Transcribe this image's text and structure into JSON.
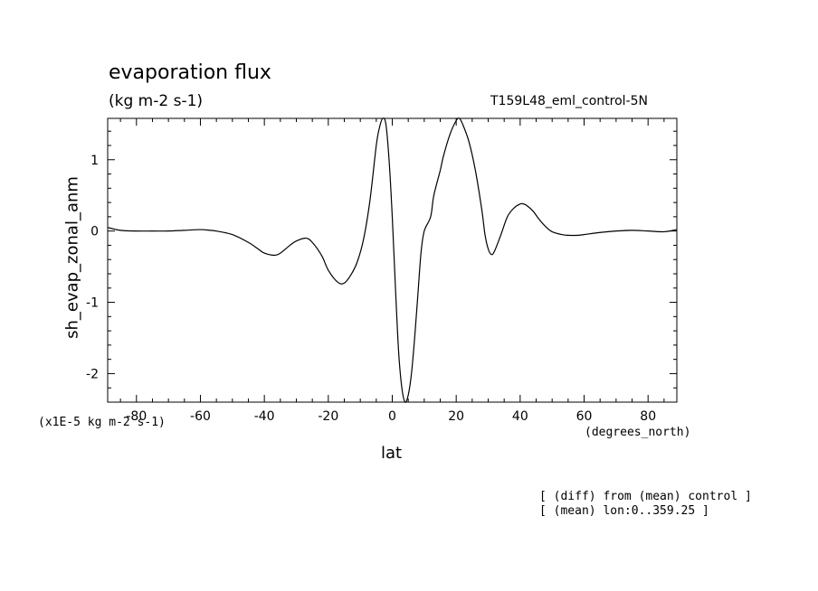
{
  "chart_data": {
    "type": "line",
    "title": "evaporation flux",
    "units": "(kg m-2 s-1)",
    "run_label": "T159L48_eml_control-5N",
    "xlabel": "lat",
    "ylabel": "sh_evap_zonal_anm",
    "x_units": "(degrees_north)",
    "y_scale_note": "(x1E-5 kg m-2 s-1)",
    "xlim": [
      -89,
      89
    ],
    "ylim": [
      -2.4,
      1.58
    ],
    "x_ticks": [
      -80,
      -60,
      -40,
      -20,
      0,
      20,
      40,
      60,
      80
    ],
    "x_tick_labels": [
      "-80",
      "-60",
      "-40",
      "-20",
      "0",
      "20",
      "40",
      "60",
      "80"
    ],
    "y_ticks": [
      -2,
      -1,
      0,
      1
    ],
    "y_tick_labels": [
      "-2",
      "-1",
      "0",
      "1"
    ],
    "grid": false,
    "series": [
      {
        "x": [
          -89,
          -85,
          -80,
          -75,
          -70,
          -65,
          -60,
          -57,
          -55,
          -50,
          -45,
          -42,
          -40,
          -37,
          -35,
          -32,
          -30,
          -27,
          -25,
          -22,
          -20,
          -17,
          -15,
          -13,
          -11,
          -9,
          -7,
          -5,
          -4,
          -3,
          -2,
          -1,
          0,
          1,
          2,
          3,
          4,
          5,
          6,
          7,
          8,
          9,
          10,
          12,
          13,
          15,
          16,
          18,
          20,
          21,
          22,
          24,
          26,
          28,
          29,
          30,
          31,
          32,
          34,
          36,
          38,
          40,
          41,
          42,
          44,
          46,
          48,
          50,
          53,
          55,
          58,
          60,
          65,
          70,
          75,
          80,
          85,
          89
        ],
        "y": [
          0.05,
          0.01,
          0.0,
          0.0,
          0.0,
          0.01,
          0.02,
          0.01,
          0.0,
          -0.05,
          -0.16,
          -0.25,
          -0.31,
          -0.34,
          -0.31,
          -0.2,
          -0.14,
          -0.1,
          -0.16,
          -0.35,
          -0.55,
          -0.72,
          -0.73,
          -0.62,
          -0.44,
          -0.12,
          0.42,
          1.2,
          1.45,
          1.58,
          1.5,
          1.0,
          0.2,
          -0.8,
          -1.7,
          -2.2,
          -2.4,
          -2.3,
          -2.0,
          -1.5,
          -0.9,
          -0.3,
          0.0,
          0.2,
          0.5,
          0.85,
          1.05,
          1.35,
          1.55,
          1.58,
          1.5,
          1.25,
          0.85,
          0.3,
          -0.05,
          -0.25,
          -0.33,
          -0.28,
          -0.05,
          0.2,
          0.32,
          0.38,
          0.38,
          0.36,
          0.28,
          0.16,
          0.06,
          -0.01,
          -0.05,
          -0.06,
          -0.06,
          -0.05,
          -0.02,
          0.0,
          0.01,
          0.0,
          -0.01,
          0.02
        ]
      }
    ]
  },
  "notes": [
    "[ (diff) from (mean) control ]",
    "[ (mean) lon:0..359.25 ]"
  ]
}
